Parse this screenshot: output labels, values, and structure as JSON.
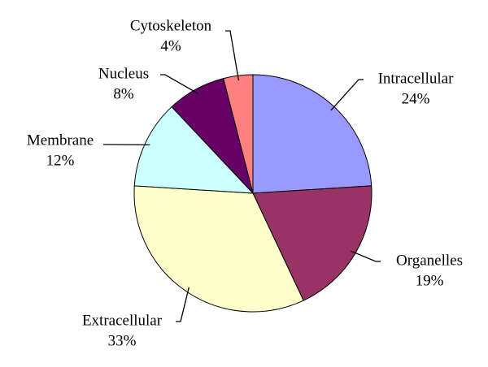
{
  "chart_data": {
    "type": "pie",
    "categories": [
      "Intracellular",
      "Organelles",
      "Extracellular",
      "Membrane",
      "Nucleus",
      "Cytoskeleton"
    ],
    "values": [
      24,
      19,
      33,
      12,
      8,
      4
    ],
    "value_labels": [
      "24%",
      "19%",
      "33%",
      "12%",
      "8%",
      "4%"
    ],
    "colors": [
      "#9999ff",
      "#993366",
      "#ffffcc",
      "#ccffff",
      "#660066",
      "#ff8080"
    ]
  }
}
